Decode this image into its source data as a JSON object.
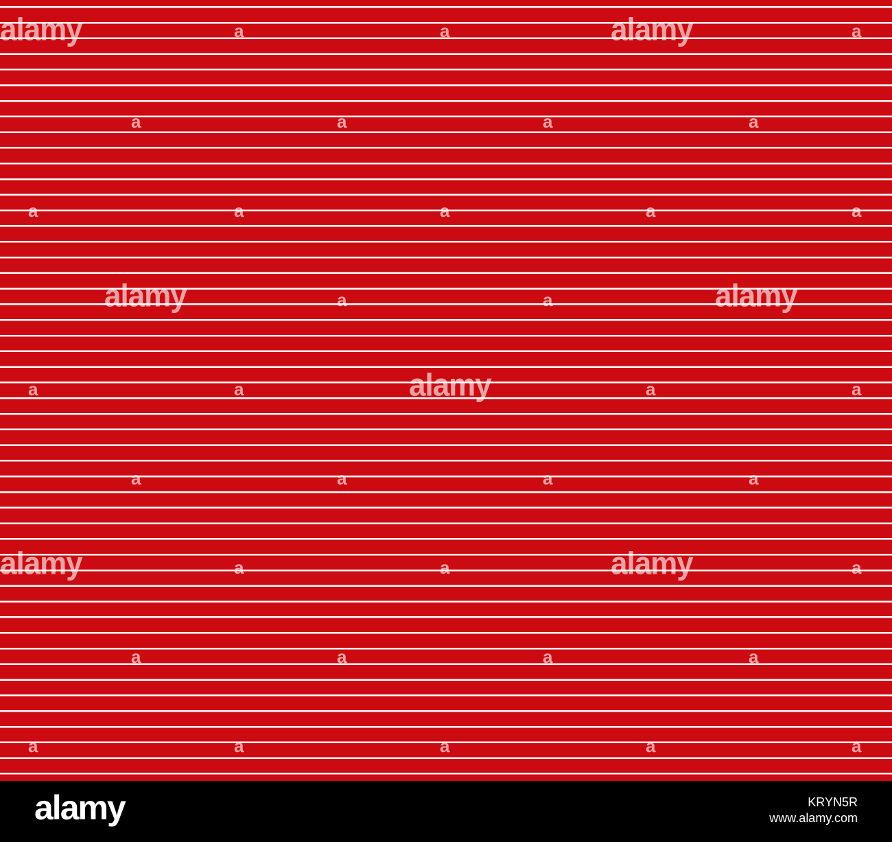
{
  "image": {
    "description_colors": {
      "background": "#cc0a11",
      "stripe": "#ffffff",
      "footer": "#000000"
    },
    "watermark": {
      "big_text": "alamy",
      "small_text": "a"
    },
    "footer": {
      "logo": "alamy",
      "image_id": "KRYN5R",
      "site": "www.alamy.com"
    }
  }
}
